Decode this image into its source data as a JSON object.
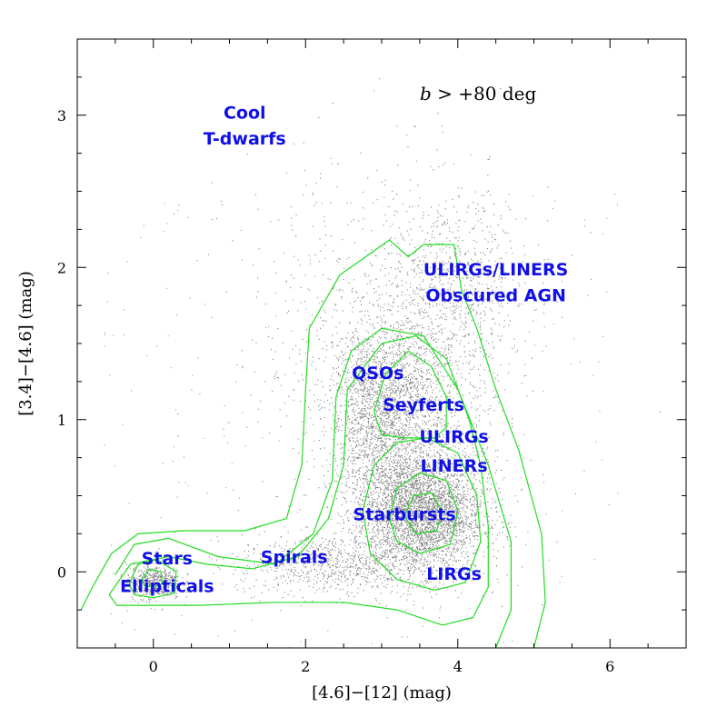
{
  "chart_data": {
    "type": "scatter",
    "xlabel": "[4.6]−[12] (mag)",
    "ylabel": "[3.4]−[4.6] (mag)",
    "xlim": [
      -1,
      7
    ],
    "ylim": [
      -0.5,
      3.5
    ],
    "x_ticks": [
      0,
      2,
      4,
      6
    ],
    "x_tick_labels": [
      "0",
      "2",
      "4",
      "6"
    ],
    "y_ticks": [
      0,
      1,
      2,
      3
    ],
    "y_tick_labels": [
      "0",
      "1",
      "2",
      "3"
    ],
    "x_minor_step": 0.5,
    "y_minor_step": 0.25,
    "grid": false,
    "annotation": {
      "var": "b",
      "text": " > +80 deg"
    },
    "point_color": "#808080",
    "contour_color": "#22dd22",
    "label_color": "#1010e8",
    "clusters": [
      {
        "cx": 3.5,
        "cy": 0.38,
        "sx": 0.42,
        "sy": 0.2,
        "weight": 0.4
      },
      {
        "cx": 3.0,
        "cy": 1.05,
        "sx": 0.35,
        "sy": 0.28,
        "weight": 0.22
      },
      {
        "cx": 3.6,
        "cy": 1.25,
        "sx": 0.5,
        "sy": 0.45,
        "weight": 0.12
      },
      {
        "cx": 2.3,
        "cy": 0.05,
        "sx": 0.6,
        "sy": 0.1,
        "weight": 0.08
      },
      {
        "cx": 0.0,
        "cy": -0.06,
        "sx": 0.18,
        "sy": 0.06,
        "weight": 0.06
      },
      {
        "cx": 4.0,
        "cy": 1.9,
        "sx": 0.5,
        "sy": 0.3,
        "weight": 0.06
      },
      {
        "cx": 2.8,
        "cy": 1.6,
        "sx": 0.9,
        "sy": 0.6,
        "weight": 0.06
      }
    ],
    "contours": [
      [
        [
          -0.95,
          -0.25
        ],
        [
          -0.8,
          -0.1
        ],
        [
          -0.55,
          0.12
        ],
        [
          -0.2,
          0.25
        ],
        [
          0.4,
          0.27
        ],
        [
          1.2,
          0.27
        ],
        [
          1.75,
          0.35
        ],
        [
          1.95,
          0.7
        ],
        [
          2.0,
          1.2
        ],
        [
          2.05,
          1.6
        ],
        [
          2.45,
          1.95
        ],
        [
          3.1,
          2.18
        ],
        [
          3.35,
          2.07
        ],
        [
          3.55,
          2.15
        ],
        [
          3.95,
          2.15
        ],
        [
          4.05,
          1.85
        ],
        [
          4.25,
          1.6
        ],
        [
          4.5,
          1.2
        ],
        [
          4.8,
          0.8
        ],
        [
          5.1,
          0.25
        ],
        [
          5.15,
          -0.2
        ],
        [
          5.0,
          -0.5
        ]
      ],
      [
        [
          -0.5,
          -0.02
        ],
        [
          -0.25,
          0.18
        ],
        [
          0.2,
          0.22
        ],
        [
          0.85,
          0.1
        ],
        [
          1.6,
          0.05
        ],
        [
          2.1,
          0.25
        ],
        [
          2.35,
          0.6
        ],
        [
          2.4,
          1.15
        ],
        [
          2.6,
          1.45
        ],
        [
          3.0,
          1.6
        ],
        [
          3.55,
          1.55
        ],
        [
          4.0,
          1.2
        ],
        [
          4.4,
          0.7
        ],
        [
          4.7,
          0.2
        ],
        [
          4.7,
          -0.25
        ],
        [
          4.5,
          -0.5
        ]
      ],
      [
        [
          -0.58,
          -0.15
        ],
        [
          -0.48,
          -0.22
        ],
        [
          -0.1,
          -0.22
        ],
        [
          0.6,
          -0.22
        ],
        [
          1.6,
          -0.2
        ],
        [
          2.5,
          -0.2
        ],
        [
          3.2,
          -0.25
        ],
        [
          3.8,
          -0.35
        ],
        [
          4.2,
          -0.3
        ],
        [
          4.4,
          -0.1
        ],
        [
          4.4,
          0.3
        ],
        [
          4.3,
          0.7
        ],
        [
          4.15,
          1.0
        ],
        [
          3.85,
          1.4
        ],
        [
          3.45,
          1.55
        ],
        [
          3.0,
          1.5
        ],
        [
          2.55,
          1.2
        ],
        [
          2.5,
          0.7
        ],
        [
          2.3,
          0.35
        ],
        [
          1.9,
          0.1
        ],
        [
          1.3,
          0.02
        ],
        [
          0.7,
          0.05
        ],
        [
          0.2,
          0.1
        ],
        [
          -0.3,
          0.05
        ],
        [
          -0.58,
          -0.15
        ]
      ],
      [
        [
          2.75,
          0.4
        ],
        [
          2.9,
          0.7
        ],
        [
          3.2,
          0.85
        ],
        [
          3.6,
          0.88
        ],
        [
          4.0,
          0.78
        ],
        [
          4.25,
          0.5
        ],
        [
          4.3,
          0.2
        ],
        [
          4.1,
          -0.07
        ],
        [
          3.7,
          -0.12
        ],
        [
          3.2,
          -0.05
        ],
        [
          2.85,
          0.12
        ],
        [
          2.75,
          0.4
        ]
      ],
      [
        [
          2.9,
          1.05
        ],
        [
          3.05,
          1.3
        ],
        [
          3.35,
          1.45
        ],
        [
          3.65,
          1.35
        ],
        [
          3.85,
          1.15
        ],
        [
          3.85,
          0.95
        ],
        [
          3.7,
          0.88
        ],
        [
          3.3,
          0.88
        ],
        [
          3.0,
          0.9
        ],
        [
          2.9,
          1.05
        ]
      ],
      [
        [
          3.1,
          0.35
        ],
        [
          3.2,
          0.55
        ],
        [
          3.5,
          0.65
        ],
        [
          3.85,
          0.6
        ],
        [
          4.0,
          0.4
        ],
        [
          3.9,
          0.18
        ],
        [
          3.5,
          0.12
        ],
        [
          3.2,
          0.2
        ],
        [
          3.1,
          0.35
        ]
      ],
      [
        [
          3.3,
          0.37
        ],
        [
          3.42,
          0.5
        ],
        [
          3.65,
          0.52
        ],
        [
          3.8,
          0.4
        ],
        [
          3.72,
          0.27
        ],
        [
          3.45,
          0.25
        ],
        [
          3.3,
          0.37
        ]
      ],
      [
        [
          -0.32,
          -0.08
        ],
        [
          -0.2,
          0.05
        ],
        [
          0.05,
          0.08
        ],
        [
          0.3,
          0.0
        ],
        [
          0.28,
          -0.14
        ],
        [
          0.0,
          -0.17
        ],
        [
          -0.25,
          -0.15
        ],
        [
          -0.32,
          -0.08
        ]
      ],
      [
        [
          -0.15,
          -0.05
        ],
        [
          -0.05,
          0.02
        ],
        [
          0.1,
          0.0
        ],
        [
          0.12,
          -0.08
        ],
        [
          0.0,
          -0.1
        ],
        [
          -0.12,
          -0.09
        ],
        [
          -0.15,
          -0.05
        ]
      ]
    ],
    "region_labels": [
      {
        "text": "Cool",
        "x": 1.2,
        "y": 3.02
      },
      {
        "text": "T-dwarfs",
        "x": 1.2,
        "y": 2.85
      },
      {
        "text": "ULIRGs/LINERS",
        "x": 4.5,
        "y": 1.99
      },
      {
        "text": "Obscured AGN",
        "x": 4.5,
        "y": 1.82
      },
      {
        "text": "QSOs",
        "x": 2.95,
        "y": 1.31
      },
      {
        "text": "Seyferts",
        "x": 3.55,
        "y": 1.1
      },
      {
        "text": "ULIRGs",
        "x": 3.95,
        "y": 0.89
      },
      {
        "text": "LINERs",
        "x": 3.95,
        "y": 0.7
      },
      {
        "text": "Starbursts",
        "x": 3.3,
        "y": 0.38
      },
      {
        "text": "Spirals",
        "x": 1.85,
        "y": 0.1
      },
      {
        "text": "LIRGs",
        "x": 3.95,
        "y": -0.01
      },
      {
        "text": "Stars",
        "x": 0.18,
        "y": 0.09
      },
      {
        "text": "Ellipticals",
        "x": 0.18,
        "y": -0.09
      }
    ]
  }
}
